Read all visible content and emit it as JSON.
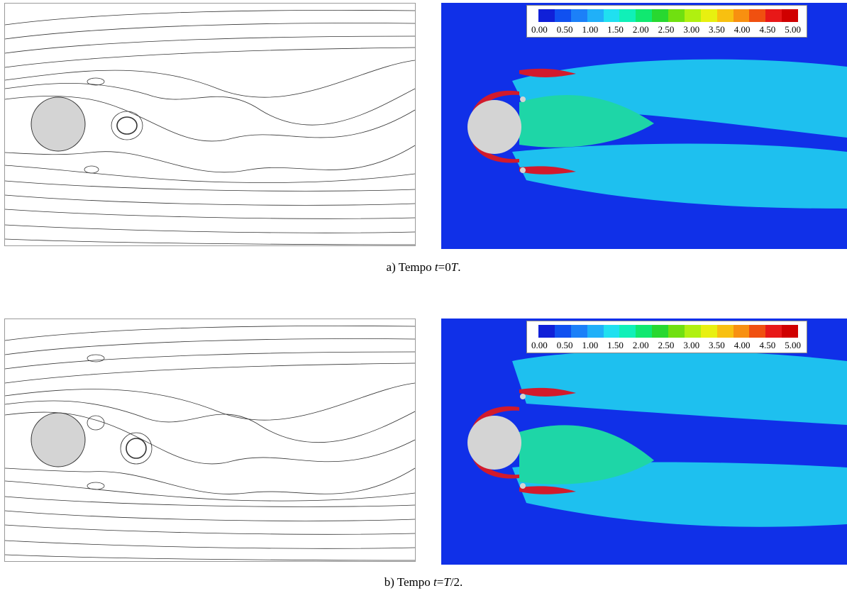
{
  "figure": {
    "captions": [
      {
        "prefix": "a) Tempo ",
        "var": "t",
        "eq": "=0",
        "sym": "T",
        "suffix": "."
      },
      {
        "prefix": "b) Tempo ",
        "var": "t",
        "eq": "=",
        "sym": "T",
        "suffix": "/2."
      }
    ],
    "colorbar": {
      "tick_labels": [
        "0.00",
        "0.50",
        "1.00",
        "1.50",
        "2.00",
        "2.50",
        "3.00",
        "3.50",
        "4.00",
        "4.50",
        "5.00"
      ],
      "colors": [
        "#1020d8",
        "#1050f0",
        "#1c80f8",
        "#20b0f8",
        "#20e0f0",
        "#10f0b8",
        "#10e870",
        "#28d830",
        "#70e010",
        "#b0f010",
        "#e8f010",
        "#f8c010",
        "#f89010",
        "#f05010",
        "#e81818",
        "#d00000"
      ]
    },
    "colors": {
      "field_background": "#1030e8",
      "cylinder": "#d4d4d4",
      "streamline": "#333333"
    }
  }
}
